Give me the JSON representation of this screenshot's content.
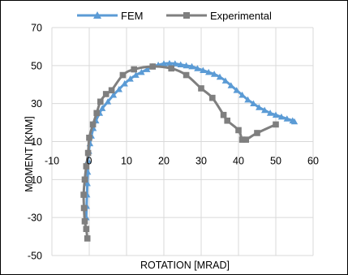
{
  "chart_data": {
    "type": "scatter",
    "title": "",
    "xlabel": "ROTATION [MRAD]",
    "ylabel": "MOMENT [KNM]",
    "xlim": [
      -10,
      60
    ],
    "ylim": [
      -50,
      70
    ],
    "x_ticks": [
      -10,
      0,
      10,
      20,
      30,
      40,
      50,
      60
    ],
    "y_ticks": [
      -50,
      -30,
      -10,
      10,
      30,
      50,
      70
    ],
    "x_tick_labels": [
      "-10",
      "0",
      "10",
      "20",
      "30",
      "40",
      "50",
      "60"
    ],
    "y_tick_labels": [
      "-50",
      "-30",
      "-10",
      "10",
      "30",
      "50",
      "70"
    ],
    "grid": true,
    "legend_position": "top",
    "series": [
      {
        "name": "FEM",
        "color": "#5b9bd5",
        "marker": "triangle",
        "points": [
          [
            -0.8,
            -30
          ],
          [
            -0.7,
            -24
          ],
          [
            -0.6,
            -18
          ],
          [
            -0.5,
            -12
          ],
          [
            -0.4,
            -6
          ],
          [
            -0.3,
            0
          ],
          [
            -0.1,
            5
          ],
          [
            0.2,
            9
          ],
          [
            0.6,
            13
          ],
          [
            1.1,
            17
          ],
          [
            1.8,
            21
          ],
          [
            2.8,
            25
          ],
          [
            3.5,
            27.5
          ],
          [
            5,
            31
          ],
          [
            6.5,
            34.5
          ],
          [
            8,
            37.5
          ],
          [
            9.5,
            40.5
          ],
          [
            11,
            43
          ],
          [
            12.5,
            45
          ],
          [
            14,
            46.5
          ],
          [
            15.5,
            48
          ],
          [
            17,
            49.5
          ],
          [
            18.5,
            50.3
          ],
          [
            20,
            51
          ],
          [
            21.5,
            51.2
          ],
          [
            23,
            51
          ],
          [
            24.5,
            50.5
          ],
          [
            26,
            50
          ],
          [
            27.5,
            49.5
          ],
          [
            29,
            48.5
          ],
          [
            30.5,
            47.5
          ],
          [
            32,
            46.5
          ],
          [
            33.5,
            45.5
          ],
          [
            35,
            44
          ],
          [
            36.5,
            42
          ],
          [
            38,
            39.5
          ],
          [
            39.5,
            37
          ],
          [
            41,
            34.5
          ],
          [
            42.5,
            32
          ],
          [
            44,
            30
          ],
          [
            45.5,
            28
          ],
          [
            47,
            26.5
          ],
          [
            48.5,
            25
          ],
          [
            50,
            24
          ],
          [
            51.5,
            23
          ],
          [
            53,
            22
          ],
          [
            54.5,
            21
          ],
          [
            55,
            20.5
          ]
        ]
      },
      {
        "name": "Experimental",
        "color": "#7f7f7f",
        "marker": "square",
        "points": [
          [
            -0.5,
            -41
          ],
          [
            -0.8,
            -36
          ],
          [
            -1.2,
            -32
          ],
          [
            -1.4,
            -25
          ],
          [
            -1.5,
            -18
          ],
          [
            -1.2,
            -10
          ],
          [
            -0.8,
            -3
          ],
          [
            -0.3,
            4
          ],
          [
            0,
            12
          ],
          [
            1,
            19
          ],
          [
            2,
            25
          ],
          [
            3,
            31
          ],
          [
            4.5,
            35
          ],
          [
            6,
            37
          ],
          [
            9,
            45
          ],
          [
            12,
            48
          ],
          [
            17,
            49.5
          ],
          [
            22,
            48.5
          ],
          [
            26,
            45
          ],
          [
            30,
            38
          ],
          [
            33,
            33
          ],
          [
            36,
            24
          ],
          [
            37,
            21
          ],
          [
            40,
            16
          ],
          [
            41,
            11
          ],
          [
            42,
            11
          ],
          [
            45,
            14.5
          ],
          [
            50,
            19
          ]
        ]
      }
    ]
  }
}
